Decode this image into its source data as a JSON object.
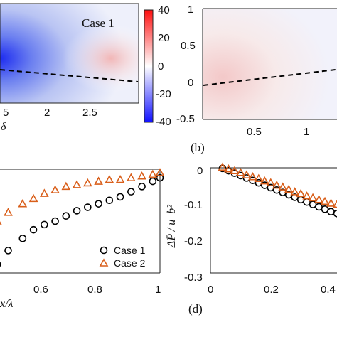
{
  "chart_data": [
    {
      "panel": "a",
      "type": "heatmap",
      "annotation": "Case 1",
      "xlabel": "δ",
      "x_ticks": [
        "5",
        "2",
        "2.5"
      ],
      "colorbar": {
        "ticks": [
          "40",
          "20",
          "0",
          "-20",
          "-40"
        ],
        "range": [
          -40,
          40
        ],
        "colors": [
          "#0000ff",
          "#ffffff",
          "#ff0000"
        ]
      },
      "dashed_line": {
        "from": [
          0.0,
          0.55
        ],
        "to": [
          1.0,
          0.6
        ]
      }
    },
    {
      "panel": "b",
      "type": "heatmap",
      "label": "(b)",
      "x_ticks": [
        "0.5",
        "1"
      ],
      "y_ticks": [
        "1",
        "0.5",
        "0",
        "-0.5"
      ],
      "ylim": [
        -0.5,
        1
      ],
      "dashed_line": {
        "from_y": 0,
        "to_y": 0.17
      }
    },
    {
      "panel": "c",
      "type": "scatter",
      "xlabel": "x/λ",
      "xlim": [
        0.4,
        1.0
      ],
      "x_ticks": [
        "0.6",
        "0.8",
        "1"
      ],
      "series": [
        {
          "name": "Case 1",
          "marker": "circle",
          "color": "#000000",
          "x": [
            0.41,
            0.45,
            0.48,
            0.52,
            0.55,
            0.58,
            0.62,
            0.65,
            0.68,
            0.71,
            0.74,
            0.77,
            0.8,
            0.83,
            0.86,
            0.89,
            0.92,
            0.95,
            0.98,
            1.0
          ],
          "y": [
            0.26,
            0.2,
            0.14,
            0.05,
            0.05,
            0.13,
            0.2,
            0.25,
            0.28,
            0.3,
            0.33,
            0.36,
            0.38,
            0.4,
            0.42,
            0.44,
            0.47,
            0.5,
            0.53,
            0.55
          ]
        },
        {
          "name": "Case 2",
          "marker": "triangle",
          "color": "#d95f1b",
          "x": [
            0.41,
            0.45,
            0.48,
            0.52,
            0.55,
            0.58,
            0.62,
            0.65,
            0.68,
            0.71,
            0.74,
            0.77,
            0.8,
            0.83,
            0.86,
            0.89,
            0.92,
            0.95,
            0.98,
            1.0
          ],
          "y": [
            0.35,
            0.32,
            0.3,
            0.28,
            0.3,
            0.35,
            0.4,
            0.43,
            0.46,
            0.48,
            0.5,
            0.51,
            0.52,
            0.53,
            0.54,
            0.54,
            0.55,
            0.56,
            0.57,
            0.58
          ]
        }
      ]
    },
    {
      "panel": "d",
      "type": "scatter",
      "label": "(d)",
      "ylabel": "ΔP̄ / u_b²",
      "xlim": [
        0,
        0.42
      ],
      "ylim": [
        -0.35,
        0
      ],
      "x_ticks": [
        "0",
        "0.2",
        "0.4"
      ],
      "y_ticks": [
        "0",
        "-0.1",
        "-0.2",
        "-0.3"
      ],
      "series": [
        {
          "name": "Case 1",
          "marker": "circle",
          "color": "#000000",
          "x": [
            0.04,
            0.06,
            0.08,
            0.1,
            0.12,
            0.14,
            0.16,
            0.18,
            0.2,
            0.22,
            0.24,
            0.26,
            0.28,
            0.3,
            0.32,
            0.34,
            0.36,
            0.38,
            0.4,
            0.42
          ],
          "y": [
            -0.002,
            -0.01,
            -0.018,
            -0.026,
            -0.034,
            -0.042,
            -0.05,
            -0.058,
            -0.066,
            -0.074,
            -0.082,
            -0.09,
            -0.098,
            -0.106,
            -0.114,
            -0.122,
            -0.13,
            -0.138,
            -0.146,
            -0.152
          ]
        },
        {
          "name": "Case 2",
          "marker": "triangle",
          "color": "#d95f1b",
          "x": [
            0.04,
            0.06,
            0.08,
            0.1,
            0.12,
            0.14,
            0.16,
            0.18,
            0.2,
            0.22,
            0.24,
            0.26,
            0.28,
            0.3,
            0.32,
            0.34,
            0.36,
            0.38,
            0.4,
            0.42
          ],
          "y": [
            0.002,
            -0.004,
            -0.01,
            -0.016,
            -0.024,
            -0.03,
            -0.036,
            -0.044,
            -0.05,
            -0.058,
            -0.064,
            -0.072,
            -0.08,
            -0.086,
            -0.094,
            -0.1,
            -0.106,
            -0.112,
            -0.118,
            -0.122
          ]
        }
      ]
    }
  ]
}
